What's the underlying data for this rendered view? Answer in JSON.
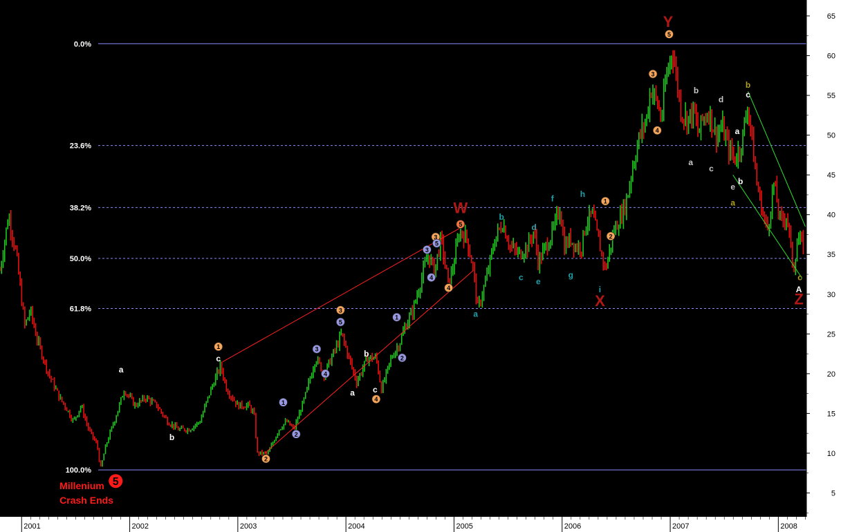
{
  "chart_data": {
    "type": "candlestick",
    "title": "",
    "xlabel": "",
    "ylabel": "",
    "ylim": [
      2,
      67
    ],
    "y_ticks": [
      5,
      10,
      15,
      20,
      25,
      30,
      35,
      40,
      45,
      50,
      55,
      60,
      65
    ],
    "x_ticks": [
      "2001",
      "2002",
      "2003",
      "2004",
      "2005",
      "2006",
      "2007",
      "2008"
    ],
    "x_tick_years": [
      2001.0,
      2002.0,
      2003.0,
      2004.0,
      2005.0,
      2006.0,
      2007.0,
      2008.0
    ],
    "xlim": [
      2000.8,
      2008.26
    ],
    "grid": false,
    "colors": {
      "up": "#1ec81e",
      "down": "#e81010",
      "background": "#000000",
      "axis_bg": "#ffffff",
      "fib_line": "#8c8cff"
    },
    "price_path": [
      [
        2000.8,
        33
      ],
      [
        2000.88,
        40
      ],
      [
        2000.95,
        35
      ],
      [
        2001.03,
        26
      ],
      [
        2001.08,
        28
      ],
      [
        2001.15,
        24
      ],
      [
        2001.25,
        20
      ],
      [
        2001.35,
        17
      ],
      [
        2001.4,
        16
      ],
      [
        2001.48,
        14
      ],
      [
        2001.55,
        16
      ],
      [
        2001.62,
        13
      ],
      [
        2001.7,
        11
      ],
      [
        2001.73,
        8
      ],
      [
        2001.78,
        11
      ],
      [
        2001.88,
        15
      ],
      [
        2001.95,
        18
      ],
      [
        2002.05,
        16
      ],
      [
        2002.15,
        17
      ],
      [
        2002.25,
        16
      ],
      [
        2002.35,
        14
      ],
      [
        2002.45,
        13
      ],
      [
        2002.55,
        13
      ],
      [
        2002.65,
        14
      ],
      [
        2002.75,
        18
      ],
      [
        2002.84,
        21
      ],
      [
        2002.9,
        18
      ],
      [
        2003.0,
        16
      ],
      [
        2003.1,
        16
      ],
      [
        2003.15,
        15
      ],
      [
        2003.18,
        10
      ],
      [
        2003.28,
        10
      ],
      [
        2003.38,
        13
      ],
      [
        2003.45,
        14
      ],
      [
        2003.52,
        13
      ],
      [
        2003.62,
        17
      ],
      [
        2003.72,
        22
      ],
      [
        2003.8,
        20
      ],
      [
        2003.9,
        23
      ],
      [
        2003.96,
        25
      ],
      [
        2004.05,
        21
      ],
      [
        2004.1,
        19
      ],
      [
        2004.2,
        22
      ],
      [
        2004.28,
        22
      ],
      [
        2004.33,
        18
      ],
      [
        2004.42,
        22
      ],
      [
        2004.5,
        24
      ],
      [
        2004.55,
        26
      ],
      [
        2004.62,
        28
      ],
      [
        2004.7,
        32
      ],
      [
        2004.76,
        35
      ],
      [
        2004.82,
        33
      ],
      [
        2004.88,
        37
      ],
      [
        2004.95,
        31
      ],
      [
        2005.0,
        34
      ],
      [
        2005.05,
        38
      ],
      [
        2005.12,
        37
      ],
      [
        2005.18,
        33
      ],
      [
        2005.22,
        28
      ],
      [
        2005.3,
        32
      ],
      [
        2005.38,
        37
      ],
      [
        2005.45,
        39
      ],
      [
        2005.52,
        36
      ],
      [
        2005.6,
        35
      ],
      [
        2005.68,
        36
      ],
      [
        2005.74,
        38
      ],
      [
        2005.78,
        34
      ],
      [
        2005.85,
        36
      ],
      [
        2005.92,
        38
      ],
      [
        2005.98,
        41
      ],
      [
        2006.02,
        36
      ],
      [
        2006.08,
        37
      ],
      [
        2006.12,
        36
      ],
      [
        2006.18,
        36
      ],
      [
        2006.22,
        39
      ],
      [
        2006.28,
        40
      ],
      [
        2006.35,
        36
      ],
      [
        2006.4,
        33
      ],
      [
        2006.48,
        38
      ],
      [
        2006.55,
        40
      ],
      [
        2006.6,
        42
      ],
      [
        2006.65,
        46
      ],
      [
        2006.72,
        50
      ],
      [
        2006.78,
        52
      ],
      [
        2006.82,
        56
      ],
      [
        2006.88,
        54
      ],
      [
        2006.92,
        52
      ],
      [
        2006.96,
        57
      ],
      [
        2007.02,
        61
      ],
      [
        2007.06,
        57
      ],
      [
        2007.1,
        53
      ],
      [
        2007.16,
        52
      ],
      [
        2007.22,
        53
      ],
      [
        2007.26,
        50
      ],
      [
        2007.3,
        52
      ],
      [
        2007.36,
        53
      ],
      [
        2007.42,
        50
      ],
      [
        2007.48,
        51
      ],
      [
        2007.55,
        48
      ],
      [
        2007.6,
        47
      ],
      [
        2007.66,
        49
      ],
      [
        2007.72,
        54
      ],
      [
        2007.76,
        49
      ],
      [
        2007.8,
        44
      ],
      [
        2007.86,
        40
      ],
      [
        2007.9,
        38
      ],
      [
        2007.96,
        44
      ],
      [
        2008.02,
        39
      ],
      [
        2008.08,
        40
      ],
      [
        2008.14,
        33
      ],
      [
        2008.18,
        37
      ],
      [
        2008.24,
        36
      ]
    ],
    "fibonacci_levels": [
      {
        "label": "0.0%",
        "price": 61.5,
        "style": "solid"
      },
      {
        "label": "23.6%",
        "price": 48.7,
        "style": "dashed"
      },
      {
        "label": "38.2%",
        "price": 40.9,
        "style": "dashed"
      },
      {
        "label": "50.0%",
        "price": 34.5,
        "style": "dashed"
      },
      {
        "label": "61.8%",
        "price": 28.2,
        "style": "dashed"
      },
      {
        "label": "100.0%",
        "price": 7.9,
        "style": "solid"
      }
    ],
    "channel_lines": [
      {
        "color": "#ff2020",
        "from": [
          2002.86,
          21.5
        ],
        "to": [
          2005.08,
          38.5
        ]
      },
      {
        "color": "#ff2020",
        "from": [
          2003.25,
          10.0
        ],
        "to": [
          2005.18,
          33.0
        ]
      },
      {
        "color": "#30e030",
        "from": [
          2007.72,
          55.5
        ],
        "to": [
          2008.25,
          38.5
        ]
      },
      {
        "color": "#30e030",
        "from": [
          2007.58,
          45.0
        ],
        "to": [
          2008.22,
          32.0
        ]
      }
    ],
    "annotations": [
      {
        "text": "Y",
        "x": 2006.98,
        "y": 64.3,
        "style": "big",
        "color": "#b01818"
      },
      {
        "text": "W",
        "x": 2005.06,
        "y": 40.9,
        "style": "big",
        "color": "#b01818"
      },
      {
        "text": "X",
        "x": 2006.35,
        "y": 29.2,
        "style": "big",
        "color": "#b01818"
      },
      {
        "text": "Z",
        "x": 2008.19,
        "y": 29.4,
        "style": "big",
        "color": "#b01818"
      },
      {
        "text": "5",
        "x": 2006.99,
        "y": 62.7,
        "style": "circle",
        "color": "#f5a55a"
      },
      {
        "text": "3",
        "x": 2006.84,
        "y": 57.7,
        "style": "circle",
        "color": "#f5a55a"
      },
      {
        "text": "4",
        "x": 2006.88,
        "y": 50.6,
        "style": "circle",
        "color": "#f5a55a"
      },
      {
        "text": "1",
        "x": 2006.4,
        "y": 41.7,
        "style": "circle",
        "color": "#f5a55a"
      },
      {
        "text": "2",
        "x": 2006.45,
        "y": 37.3,
        "style": "circle",
        "color": "#f5a55a"
      },
      {
        "text": "5",
        "x": 2005.06,
        "y": 38.8,
        "style": "circle",
        "color": "#f07840"
      },
      {
        "text": "3",
        "x": 2004.83,
        "y": 37.2,
        "style": "circle",
        "color": "#f5a55a"
      },
      {
        "text": "4",
        "x": 2004.95,
        "y": 30.8,
        "style": "circle",
        "color": "#f5a55a"
      },
      {
        "text": "3",
        "x": 2003.95,
        "y": 28.0,
        "style": "circle",
        "color": "#f5a55a"
      },
      {
        "text": "4",
        "x": 2004.28,
        "y": 16.8,
        "style": "circle",
        "color": "#f5a55a"
      },
      {
        "text": "1",
        "x": 2002.82,
        "y": 23.4,
        "style": "circle",
        "color": "#f5a55a"
      },
      {
        "text": "2",
        "x": 2003.26,
        "y": 9.3,
        "style": "circle",
        "color": "#f5a55a"
      },
      {
        "text": "1",
        "x": 2003.42,
        "y": 16.4,
        "style": "circle",
        "color": "#9898e0"
      },
      {
        "text": "2",
        "x": 2003.54,
        "y": 12.4,
        "style": "circle",
        "color": "#9898e0"
      },
      {
        "text": "3",
        "x": 2003.73,
        "y": 23.1,
        "style": "circle",
        "color": "#9898e0"
      },
      {
        "text": "4",
        "x": 2003.81,
        "y": 20.0,
        "style": "circle",
        "color": "#9898e0"
      },
      {
        "text": "5",
        "x": 2003.95,
        "y": 26.5,
        "style": "circle",
        "color": "#9898e0"
      },
      {
        "text": "1",
        "x": 2004.47,
        "y": 27.1,
        "style": "circle",
        "color": "#9898e0"
      },
      {
        "text": "2",
        "x": 2004.52,
        "y": 22.0,
        "style": "circle",
        "color": "#9898e0"
      },
      {
        "text": "3",
        "x": 2004.75,
        "y": 35.6,
        "style": "circle",
        "color": "#9898e0"
      },
      {
        "text": "4",
        "x": 2004.79,
        "y": 32.1,
        "style": "circle",
        "color": "#9898e0"
      },
      {
        "text": "5",
        "x": 2004.84,
        "y": 36.4,
        "style": "circle",
        "color": "#9898e0"
      },
      {
        "text": "a",
        "x": 2001.92,
        "y": 20.5,
        "style": "small",
        "color": "#ffffff"
      },
      {
        "text": "b",
        "x": 2002.39,
        "y": 12.0,
        "style": "small",
        "color": "#ffffff"
      },
      {
        "text": "c",
        "x": 2002.82,
        "y": 21.9,
        "style": "small",
        "color": "#ffffff"
      },
      {
        "text": "a",
        "x": 2004.06,
        "y": 17.6,
        "style": "small",
        "color": "#ffffff"
      },
      {
        "text": "b",
        "x": 2004.19,
        "y": 22.5,
        "style": "small",
        "color": "#ffffff"
      },
      {
        "text": "c",
        "x": 2004.27,
        "y": 18.0,
        "style": "small",
        "color": "#ffffff"
      },
      {
        "text": "a",
        "x": 2005.2,
        "y": 27.5,
        "style": "small",
        "color": "#20a0a8"
      },
      {
        "text": "b",
        "x": 2005.44,
        "y": 39.7,
        "style": "small",
        "color": "#20a0a8"
      },
      {
        "text": "c",
        "x": 2005.62,
        "y": 32.1,
        "style": "small",
        "color": "#20a0a8"
      },
      {
        "text": "d",
        "x": 2005.74,
        "y": 38.4,
        "style": "small",
        "color": "#20a0a8"
      },
      {
        "text": "e",
        "x": 2005.78,
        "y": 31.6,
        "style": "small",
        "color": "#20a0a8"
      },
      {
        "text": "f",
        "x": 2005.91,
        "y": 42.0,
        "style": "small",
        "color": "#20a0a8"
      },
      {
        "text": "g",
        "x": 2006.08,
        "y": 32.4,
        "style": "small",
        "color": "#20a0a8"
      },
      {
        "text": "h",
        "x": 2006.19,
        "y": 42.6,
        "style": "small",
        "color": "#20a0a8"
      },
      {
        "text": "i",
        "x": 2006.35,
        "y": 30.6,
        "style": "small",
        "color": "#20a0a8"
      },
      {
        "text": "a",
        "x": 2007.19,
        "y": 46.6,
        "style": "small",
        "color": "#c8c8c8"
      },
      {
        "text": "b",
        "x": 2007.24,
        "y": 55.6,
        "style": "small",
        "color": "#c8c8c8"
      },
      {
        "text": "c",
        "x": 2007.38,
        "y": 45.8,
        "style": "small",
        "color": "#c8c8c8"
      },
      {
        "text": "d",
        "x": 2007.47,
        "y": 54.5,
        "style": "small",
        "color": "#c8c8c8"
      },
      {
        "text": "e",
        "x": 2007.58,
        "y": 43.5,
        "style": "small",
        "color": "#c8c8c8"
      },
      {
        "text": "a",
        "x": 2007.62,
        "y": 50.5,
        "style": "small",
        "color": "#ffffff"
      },
      {
        "text": "b",
        "x": 2007.65,
        "y": 44.2,
        "style": "small",
        "color": "#ffffff"
      },
      {
        "text": "c",
        "x": 2007.72,
        "y": 55.1,
        "style": "small",
        "color": "#ffffff"
      },
      {
        "text": "b",
        "x": 2007.72,
        "y": 56.3,
        "style": "small",
        "color": "#b0a020"
      },
      {
        "text": "a",
        "x": 2007.58,
        "y": 41.5,
        "style": "small",
        "color": "#b0a020"
      },
      {
        "text": "c",
        "x": 2008.2,
        "y": 32.1,
        "style": "small",
        "color": "#b0a020"
      },
      {
        "text": "A",
        "x": 2008.19,
        "y": 30.6,
        "style": "small",
        "color": "#ffffff"
      }
    ],
    "notes": [
      {
        "text": "Millenium",
        "x": 2001.62,
        "y": 5.9
      },
      {
        "text": "Crash Ends",
        "x": 2001.62,
        "y": 4.1
      }
    ],
    "note_badge": {
      "text": "5",
      "x": 2001.87,
      "y": 6.5,
      "color": "#ff1a1a"
    }
  }
}
